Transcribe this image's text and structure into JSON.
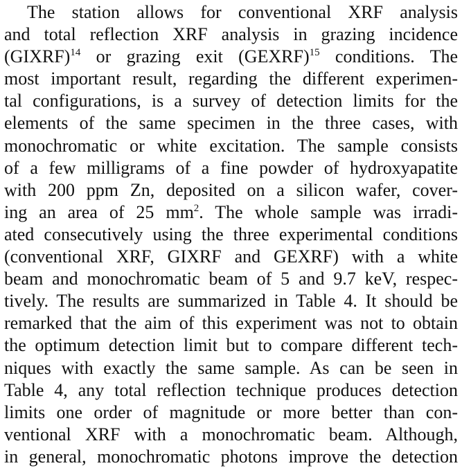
{
  "paragraph": {
    "lines": [
      {
        "segments": [
          {
            "text": "The station allows for conventional XRF analysis"
          }
        ]
      },
      {
        "segments": [
          {
            "text": "and total reflection XRF analysis in grazing incidence"
          }
        ]
      },
      {
        "segments": [
          {
            "text": "(GIXRF)"
          },
          {
            "text": "14",
            "sup": true
          },
          {
            "text": " or grazing exit (GEXRF)"
          },
          {
            "text": "15",
            "sup": true
          },
          {
            "text": " conditions. The"
          }
        ]
      },
      {
        "segments": [
          {
            "text": "most important result, regarding the different experimen-"
          }
        ]
      },
      {
        "segments": [
          {
            "text": "tal configurations, is a survey of detection limits for the"
          }
        ]
      },
      {
        "segments": [
          {
            "text": "elements of the same specimen in the three cases, with"
          }
        ]
      },
      {
        "segments": [
          {
            "text": "monochromatic or white excitation. The sample consists"
          }
        ]
      },
      {
        "segments": [
          {
            "text": "of a few milligrams of a fine powder of hydroxyapatite"
          }
        ]
      },
      {
        "segments": [
          {
            "text": "with 200 ppm Zn, deposited on a silicon wafer, cover-"
          }
        ]
      },
      {
        "segments": [
          {
            "text": "ing an area of 25 mm"
          },
          {
            "text": "2",
            "sup": true
          },
          {
            "text": ". The whole sample was irradi-"
          }
        ]
      },
      {
        "segments": [
          {
            "text": "ated consecutively using the three experimental conditions"
          }
        ]
      },
      {
        "segments": [
          {
            "text": "(conventional XRF, GIXRF and GEXRF) with a white"
          }
        ]
      },
      {
        "segments": [
          {
            "text": "beam and monochromatic beam of 5 and 9.7 keV, respec-"
          }
        ]
      },
      {
        "segments": [
          {
            "text": "tively. The results are summarized in Table 4. It should be"
          }
        ]
      },
      {
        "segments": [
          {
            "text": "remarked that the aim of this experiment was not to obtain"
          }
        ]
      },
      {
        "segments": [
          {
            "text": "the optimum detection limit but to compare different tech-"
          }
        ]
      },
      {
        "segments": [
          {
            "text": "niques with exactly the same sample. As can be seen in"
          }
        ]
      },
      {
        "segments": [
          {
            "text": "Table 4, any total reflection technique produces detection"
          }
        ]
      },
      {
        "segments": [
          {
            "text": "limits one order of magnitude or more better than con-"
          }
        ]
      },
      {
        "segments": [
          {
            "text": "ventional XRF with a monochromatic beam. Although,"
          }
        ]
      },
      {
        "segments": [
          {
            "text": "in general, monochromatic photons improve the detection"
          }
        ]
      }
    ]
  }
}
